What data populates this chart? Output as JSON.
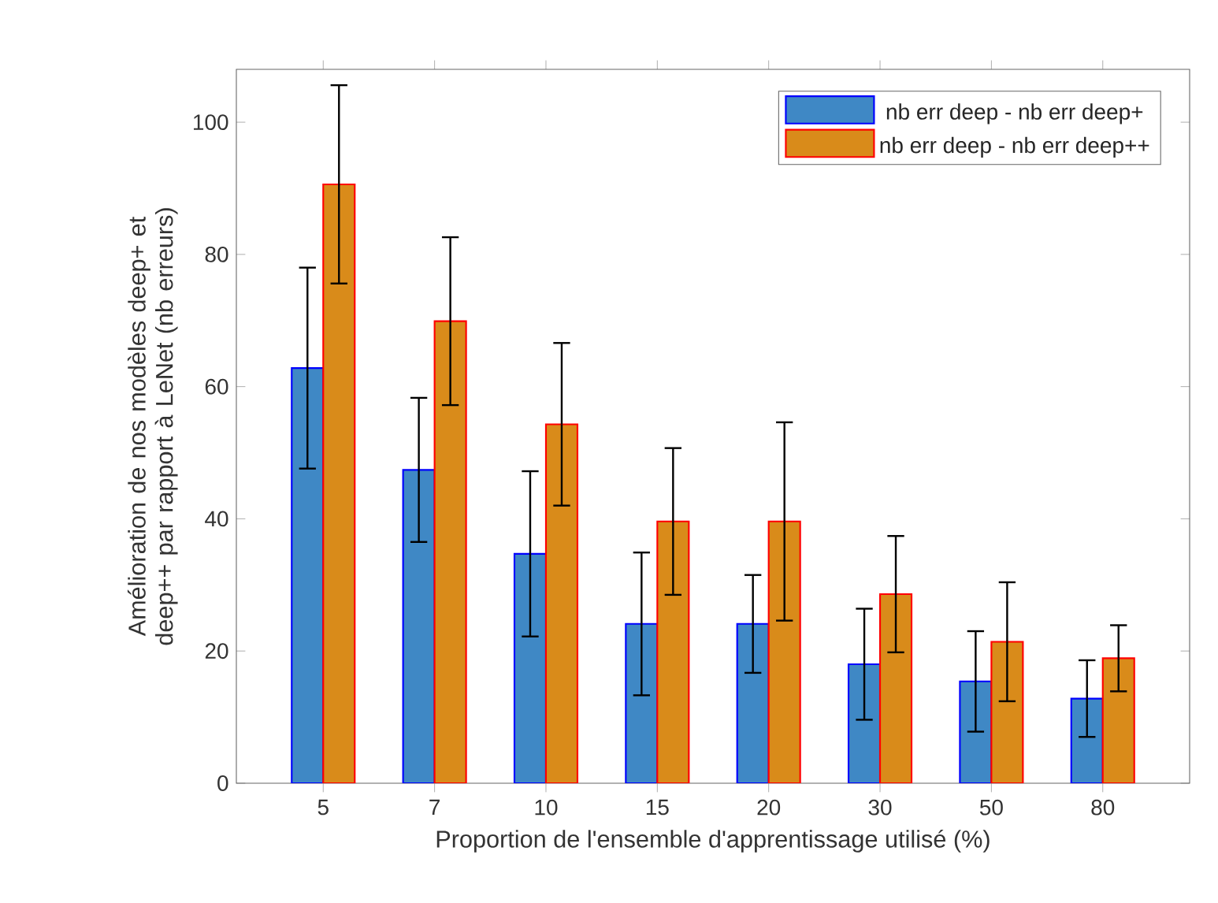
{
  "chart_data": {
    "type": "bar",
    "xlabel": "Proportion de l'ensemble d'apprentissage utilisé (%)",
    "ylabel": "Amélioration de nos modèles deep+ et deep++ par rapport à LeNet (nb erreurs)",
    "categories": [
      "5",
      "7",
      "10",
      "15",
      "20",
      "30",
      "50",
      "80"
    ],
    "series": [
      {
        "name": "nb err deep - nb err deep+",
        "color": "#3f88c5",
        "values": [
          62.8,
          47.4,
          34.7,
          24.1,
          24.1,
          18.0,
          15.4,
          12.8
        ],
        "errors": [
          15.2,
          10.9,
          12.5,
          10.8,
          7.4,
          8.4,
          7.6,
          5.8
        ]
      },
      {
        "name": "nb err deep - nb err deep++",
        "color": "#d98b1a",
        "values": [
          90.6,
          69.9,
          54.3,
          39.6,
          39.6,
          28.6,
          21.4,
          18.9
        ],
        "errors": [
          15.0,
          12.7,
          12.3,
          11.1,
          15.0,
          8.8,
          9.0,
          5.0
        ]
      }
    ],
    "ylim": [
      0,
      108
    ],
    "yticks": [
      0,
      20,
      40,
      60,
      80,
      100
    ],
    "grid": false,
    "legend": "top right"
  }
}
